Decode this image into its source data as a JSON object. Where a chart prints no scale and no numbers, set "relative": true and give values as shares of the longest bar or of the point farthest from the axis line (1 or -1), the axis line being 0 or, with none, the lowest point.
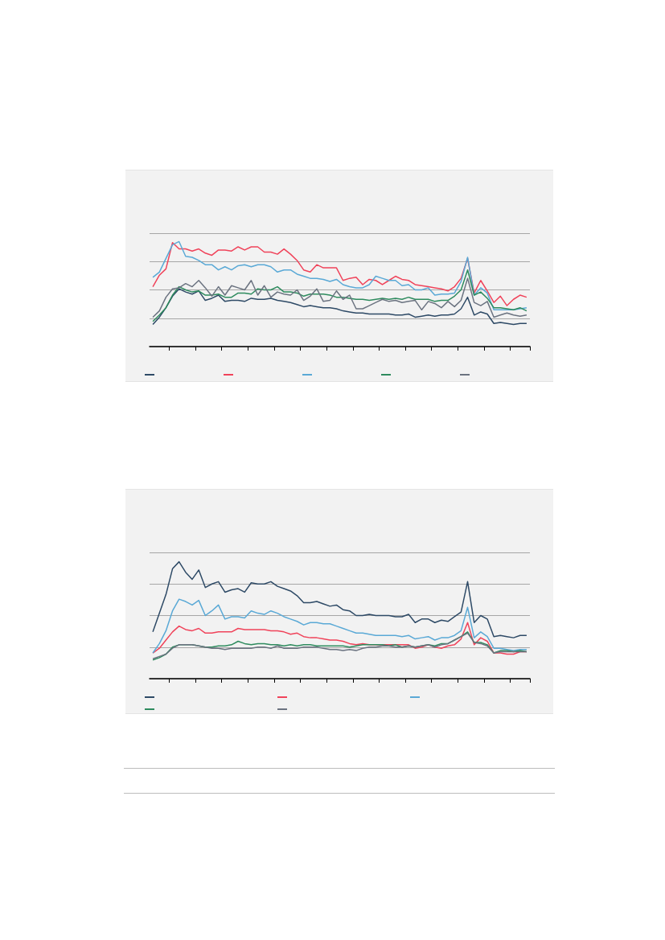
{
  "chart_data": [
    {
      "type": "line",
      "relative": true,
      "grid": "y",
      "categories": [
        null,
        null,
        null,
        null,
        null,
        null,
        null,
        null,
        null,
        null,
        null,
        null,
        null,
        null,
        null,
        null,
        null,
        null,
        null,
        null,
        null,
        null,
        null,
        null,
        null,
        null,
        null,
        null,
        null,
        null,
        null,
        null,
        null,
        null,
        null,
        null,
        null,
        null,
        null,
        null,
        null,
        null,
        null,
        null,
        null,
        null,
        null,
        null,
        null,
        null,
        null,
        null,
        null,
        null,
        null,
        null,
        null,
        null
      ],
      "series": [
        {
          "color": "#2e4a66",
          "values": [
            0.21,
            0.28,
            0.37,
            0.48,
            0.55,
            0.52,
            0.5,
            0.53,
            0.44,
            0.46,
            0.49,
            0.43,
            0.44,
            0.44,
            0.43,
            0.46,
            0.45,
            0.45,
            0.46,
            0.44,
            0.43,
            0.42,
            0.4,
            0.38,
            0.39,
            0.38,
            0.37,
            0.37,
            0.36,
            0.34,
            0.33,
            0.32,
            0.32,
            0.31,
            0.31,
            0.31,
            0.31,
            0.3,
            0.3,
            0.31,
            0.28,
            0.29,
            0.3,
            0.29,
            0.3,
            0.3,
            0.31,
            0.36,
            0.47,
            0.3,
            0.33,
            0.31,
            0.22,
            0.23,
            0.22,
            0.21,
            0.22,
            0.22
          ]
        },
        {
          "color": "#f0435a",
          "values": [
            0.57,
            0.68,
            0.74,
            0.99,
            0.93,
            0.93,
            0.91,
            0.93,
            0.89,
            0.87,
            0.92,
            0.92,
            0.91,
            0.95,
            0.92,
            0.95,
            0.95,
            0.9,
            0.9,
            0.88,
            0.93,
            0.88,
            0.82,
            0.73,
            0.71,
            0.78,
            0.75,
            0.75,
            0.75,
            0.63,
            0.65,
            0.66,
            0.59,
            0.64,
            0.63,
            0.59,
            0.63,
            0.67,
            0.64,
            0.63,
            0.59,
            0.58,
            0.57,
            0.56,
            0.55,
            0.53,
            0.57,
            0.65,
            0.84,
            0.51,
            0.63,
            0.53,
            0.42,
            0.48,
            0.39,
            0.45,
            0.49,
            0.47
          ]
        },
        {
          "color": "#5aa9d6",
          "values": [
            0.66,
            0.71,
            0.84,
            0.97,
            1.0,
            0.86,
            0.85,
            0.82,
            0.78,
            0.78,
            0.73,
            0.76,
            0.73,
            0.77,
            0.78,
            0.76,
            0.78,
            0.78,
            0.76,
            0.71,
            0.73,
            0.73,
            0.69,
            0.67,
            0.65,
            0.65,
            0.64,
            0.62,
            0.64,
            0.59,
            0.57,
            0.56,
            0.56,
            0.59,
            0.67,
            0.65,
            0.63,
            0.63,
            0.58,
            0.59,
            0.54,
            0.54,
            0.56,
            0.49,
            0.5,
            0.5,
            0.51,
            0.62,
            0.85,
            0.49,
            0.56,
            0.51,
            0.35,
            0.35,
            0.35,
            0.35,
            0.36,
            0.37
          ]
        },
        {
          "color": "#2e8b5e",
          "values": [
            0.24,
            0.3,
            0.37,
            0.49,
            0.57,
            0.54,
            0.52,
            0.53,
            0.49,
            0.49,
            0.5,
            0.47,
            0.47,
            0.51,
            0.51,
            0.5,
            0.55,
            0.54,
            0.54,
            0.57,
            0.52,
            0.52,
            0.51,
            0.48,
            0.5,
            0.5,
            0.5,
            0.49,
            0.47,
            0.47,
            0.46,
            0.45,
            0.45,
            0.44,
            0.45,
            0.46,
            0.45,
            0.46,
            0.45,
            0.47,
            0.45,
            0.45,
            0.45,
            0.43,
            0.44,
            0.44,
            0.48,
            0.54,
            0.73,
            0.49,
            0.52,
            0.46,
            0.37,
            0.37,
            0.36,
            0.35,
            0.37,
            0.34
          ]
        },
        {
          "color": "#6b7380",
          "values": [
            0.28,
            0.34,
            0.47,
            0.55,
            0.56,
            0.6,
            0.57,
            0.63,
            0.56,
            0.48,
            0.57,
            0.49,
            0.58,
            0.56,
            0.54,
            0.63,
            0.49,
            0.58,
            0.47,
            0.52,
            0.5,
            0.49,
            0.54,
            0.44,
            0.48,
            0.55,
            0.43,
            0.44,
            0.53,
            0.45,
            0.49,
            0.36,
            0.36,
            0.39,
            0.42,
            0.45,
            0.43,
            0.44,
            0.42,
            0.43,
            0.44,
            0.35,
            0.43,
            0.41,
            0.37,
            0.43,
            0.38,
            0.44,
            0.65,
            0.42,
            0.39,
            0.43,
            0.28,
            0.3,
            0.32,
            0.3,
            0.29,
            0.3
          ]
        }
      ]
    },
    {
      "type": "line",
      "relative": true,
      "grid": "y",
      "categories": [
        null,
        null,
        null,
        null,
        null,
        null,
        null,
        null,
        null,
        null,
        null,
        null,
        null,
        null,
        null,
        null,
        null,
        null,
        null,
        null,
        null,
        null,
        null,
        null,
        null,
        null,
        null,
        null,
        null,
        null,
        null,
        null,
        null,
        null,
        null,
        null,
        null,
        null,
        null,
        null,
        null,
        null,
        null,
        null,
        null,
        null,
        null,
        null,
        null,
        null,
        null,
        null,
        null,
        null,
        null,
        null,
        null,
        null
      ],
      "series": [
        {
          "color": "#2e4a66",
          "values": [
            0.4,
            0.56,
            0.72,
            0.94,
            1.0,
            0.91,
            0.85,
            0.93,
            0.78,
            0.81,
            0.83,
            0.74,
            0.76,
            0.77,
            0.74,
            0.82,
            0.81,
            0.81,
            0.83,
            0.79,
            0.77,
            0.75,
            0.71,
            0.65,
            0.65,
            0.66,
            0.64,
            0.62,
            0.63,
            0.59,
            0.58,
            0.54,
            0.54,
            0.55,
            0.54,
            0.54,
            0.54,
            0.53,
            0.53,
            0.55,
            0.48,
            0.51,
            0.51,
            0.48,
            0.5,
            0.49,
            0.53,
            0.57,
            0.83,
            0.48,
            0.54,
            0.51,
            0.36,
            0.37,
            0.36,
            0.35,
            0.37,
            0.37
          ]
        },
        {
          "color": "#f0435a",
          "values": [
            0.22,
            0.26,
            0.33,
            0.4,
            0.45,
            0.42,
            0.41,
            0.43,
            0.39,
            0.39,
            0.4,
            0.4,
            0.4,
            0.43,
            0.42,
            0.42,
            0.42,
            0.42,
            0.41,
            0.41,
            0.4,
            0.38,
            0.39,
            0.36,
            0.35,
            0.35,
            0.34,
            0.33,
            0.33,
            0.32,
            0.3,
            0.29,
            0.3,
            0.29,
            0.29,
            0.29,
            0.29,
            0.29,
            0.29,
            0.29,
            0.26,
            0.27,
            0.29,
            0.27,
            0.26,
            0.28,
            0.29,
            0.34,
            0.48,
            0.29,
            0.35,
            0.32,
            0.22,
            0.22,
            0.21,
            0.21,
            0.23,
            0.23
          ]
        },
        {
          "color": "#5aa9d6",
          "values": [
            0.22,
            0.3,
            0.41,
            0.58,
            0.68,
            0.66,
            0.63,
            0.67,
            0.54,
            0.58,
            0.63,
            0.51,
            0.53,
            0.53,
            0.52,
            0.58,
            0.56,
            0.55,
            0.58,
            0.56,
            0.53,
            0.51,
            0.49,
            0.46,
            0.48,
            0.48,
            0.47,
            0.47,
            0.45,
            0.43,
            0.41,
            0.39,
            0.39,
            0.38,
            0.37,
            0.37,
            0.37,
            0.37,
            0.36,
            0.37,
            0.34,
            0.35,
            0.36,
            0.33,
            0.35,
            0.35,
            0.37,
            0.41,
            0.61,
            0.35,
            0.4,
            0.36,
            0.26,
            0.26,
            0.25,
            0.24,
            0.25,
            0.25
          ]
        },
        {
          "color": "#2e8b5e",
          "values": [
            0.16,
            0.18,
            0.21,
            0.27,
            0.29,
            0.29,
            0.29,
            0.28,
            0.27,
            0.27,
            0.28,
            0.28,
            0.29,
            0.32,
            0.3,
            0.29,
            0.3,
            0.3,
            0.29,
            0.29,
            0.28,
            0.29,
            0.28,
            0.29,
            0.29,
            0.28,
            0.28,
            0.28,
            0.28,
            0.28,
            0.27,
            0.28,
            0.29,
            0.29,
            0.29,
            0.29,
            0.28,
            0.29,
            0.27,
            0.28,
            0.27,
            0.28,
            0.29,
            0.28,
            0.3,
            0.3,
            0.33,
            0.36,
            0.4,
            0.31,
            0.31,
            0.29,
            0.22,
            0.24,
            0.24,
            0.23,
            0.24,
            0.23
          ]
        },
        {
          "color": "#6b7380",
          "values": [
            0.17,
            0.19,
            0.21,
            0.26,
            0.29,
            0.29,
            0.29,
            0.28,
            0.27,
            0.26,
            0.26,
            0.25,
            0.26,
            0.26,
            0.26,
            0.26,
            0.27,
            0.27,
            0.26,
            0.28,
            0.26,
            0.26,
            0.26,
            0.27,
            0.27,
            0.27,
            0.26,
            0.25,
            0.25,
            0.24,
            0.25,
            0.24,
            0.26,
            0.27,
            0.27,
            0.28,
            0.28,
            0.27,
            0.27,
            0.28,
            0.27,
            0.28,
            0.29,
            0.27,
            0.29,
            0.3,
            0.33,
            0.36,
            0.39,
            0.31,
            0.3,
            0.28,
            0.22,
            0.23,
            0.23,
            0.23,
            0.23,
            0.23
          ]
        }
      ]
    }
  ]
}
